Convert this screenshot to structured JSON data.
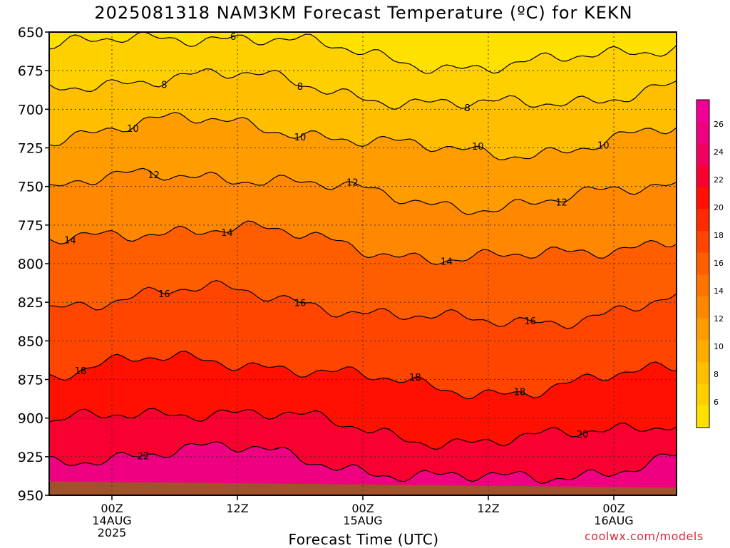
{
  "title": "2025081318 NAM3KM Forecast Temperature (ºC) for KEKN",
  "credit": "coolwx.com/models",
  "chart_data": {
    "type": "heatmap",
    "title": "2025081318 NAM3KM Forecast Temperature (ºC) for KEKN",
    "xlabel": "Forecast Time (UTC)",
    "ylabel": "",
    "y_axis": {
      "reversed": true,
      "ticks": [
        650,
        675,
        700,
        725,
        750,
        775,
        800,
        825,
        850,
        875,
        900,
        925,
        950
      ],
      "range": [
        950,
        650
      ]
    },
    "x_axis": {
      "range_hours": [
        -3,
        27
      ],
      "ticks": [
        {
          "hour": 0,
          "lines": [
            "00Z",
            "14AUG",
            "2025"
          ]
        },
        {
          "hour": 6,
          "lines": [
            "12Z"
          ]
        },
        {
          "hour": 12,
          "lines": [
            "00Z",
            "15AUG"
          ]
        },
        {
          "hour": 18,
          "lines": [
            "12Z"
          ]
        },
        {
          "hour": 24,
          "lines": [
            "00Z",
            "16AUG"
          ]
        }
      ]
    },
    "grid": true,
    "colorbar": {
      "position": "right",
      "labels": [
        6,
        8,
        10,
        12,
        14,
        16,
        18,
        20,
        22,
        24,
        26
      ],
      "colors": [
        "#ffe100",
        "#ffd000",
        "#ffbe00",
        "#ffac00",
        "#ff9c00",
        "#ff8800",
        "#ff7400",
        "#ff5e00",
        "#ff4500",
        "#ff2a00",
        "#ff1000",
        "#f80030",
        "#f20060",
        "#ee0080",
        "#f00096"
      ]
    },
    "isotherms": [
      {
        "value": 6,
        "label_time_hours": 5.8
      },
      {
        "value": 8,
        "label_time_hours": 2.5
      },
      {
        "value": 8,
        "label_time_hours": 9.0
      },
      {
        "value": 8,
        "label_time_hours": 17.0
      },
      {
        "value": 10,
        "label_time_hours": 1.0
      },
      {
        "value": 10,
        "label_time_hours": 9.0
      },
      {
        "value": 10,
        "label_time_hours": 17.5
      },
      {
        "value": 10,
        "label_time_hours": 23.5
      },
      {
        "value": 12,
        "label_time_hours": 2.0
      },
      {
        "value": 12,
        "label_time_hours": 11.5
      },
      {
        "value": 12,
        "label_time_hours": 21.5
      },
      {
        "value": 14,
        "label_time_hours": -2.0
      },
      {
        "value": 14,
        "label_time_hours": 5.5
      },
      {
        "value": 14,
        "label_time_hours": 16.0
      },
      {
        "value": 16,
        "label_time_hours": 2.5
      },
      {
        "value": 16,
        "label_time_hours": 9.0
      },
      {
        "value": 16,
        "label_time_hours": 20.0
      },
      {
        "value": 18,
        "label_time_hours": -1.5
      },
      {
        "value": 18,
        "label_time_hours": 14.5
      },
      {
        "value": 18,
        "label_time_hours": 19.5
      },
      {
        "value": 20,
        "label_time_hours": 22.5
      },
      {
        "value": 22,
        "label_time_hours": 1.5
      }
    ]
  }
}
